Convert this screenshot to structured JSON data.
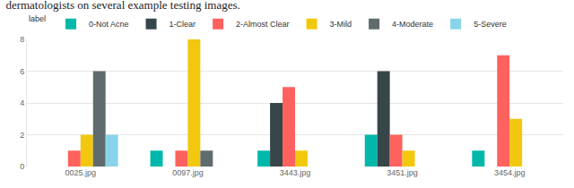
{
  "chart_data": {
    "type": "bar",
    "title": "dermatologists on several example testing images.",
    "legend_title": "label",
    "legend": "top left",
    "grid": true,
    "categories": [
      "0025.jpg",
      "0097.jpg",
      "3443.jpg",
      "3451.jpg",
      "3454.jpg"
    ],
    "series": [
      {
        "name": "0-Not Acne",
        "color": "#01B8AA",
        "values": [
          0,
          1,
          1,
          2,
          1
        ]
      },
      {
        "name": "1-Clear",
        "color": "#374649",
        "values": [
          0,
          0,
          4,
          6,
          0
        ]
      },
      {
        "name": "2-Almost Clear",
        "color": "#FD625E",
        "values": [
          1,
          1,
          5,
          2,
          7
        ]
      },
      {
        "name": "3-Mild",
        "color": "#F2C80F",
        "values": [
          2,
          8,
          1,
          1,
          3
        ]
      },
      {
        "name": "4-Moderate",
        "color": "#5F6B6D",
        "values": [
          6,
          1,
          0,
          0,
          0
        ]
      },
      {
        "name": "5-Severe",
        "color": "#8AD4EB",
        "values": [
          2,
          0,
          0,
          0,
          0
        ]
      }
    ],
    "ylim": [
      0,
      8
    ],
    "yticks": [
      0,
      2,
      4,
      6,
      8
    ]
  }
}
